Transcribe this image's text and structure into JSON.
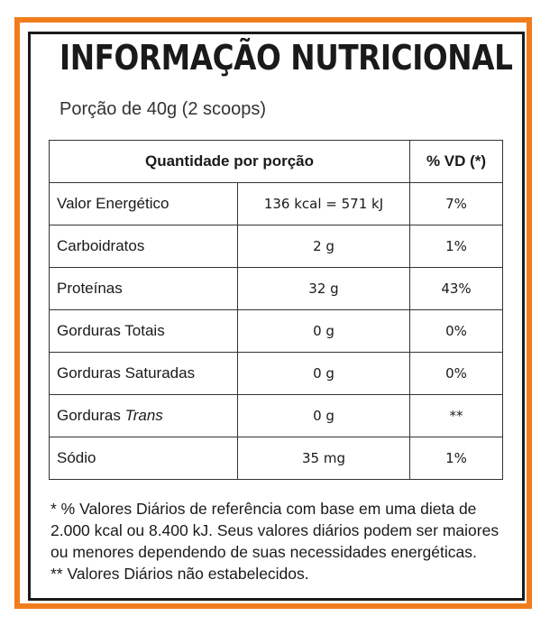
{
  "colors": {
    "frame": "#f07d1c",
    "text": "#1a1a1a"
  },
  "title": "INFORMAÇÃO NUTRICIONAL",
  "portion": "Porção de 40g (2 scoops)",
  "table": {
    "header": {
      "quantity": "Quantidade por porção",
      "vd": "% VD (*)"
    },
    "rows": [
      {
        "name": "Valor Energético",
        "amount": "136 kcal = 571 kJ",
        "vd": "7%"
      },
      {
        "name": "Carboidratos",
        "amount": "2 g",
        "vd": "1%"
      },
      {
        "name": "Proteínas",
        "amount": "32 g",
        "vd": "43%"
      },
      {
        "name": "Gorduras Totais",
        "amount": "0 g",
        "vd": "0%"
      },
      {
        "name": "Gorduras Saturadas",
        "amount": "0 g",
        "vd": "0%"
      },
      {
        "name": "Gorduras",
        "name_italic": "Trans",
        "amount": "0 g",
        "vd": "**"
      },
      {
        "name": "Sódio",
        "amount": "35 mg",
        "vd": "1%"
      }
    ]
  },
  "footnotes": {
    "line1": "* % Valores Diários de referência com base em uma dieta de 2.000 kcal ou 8.400 kJ. Seus valores diários podem ser maiores ou menores dependendo de suas necessidades energéticas.",
    "line2": "** Valores Diários não estabelecidos."
  }
}
